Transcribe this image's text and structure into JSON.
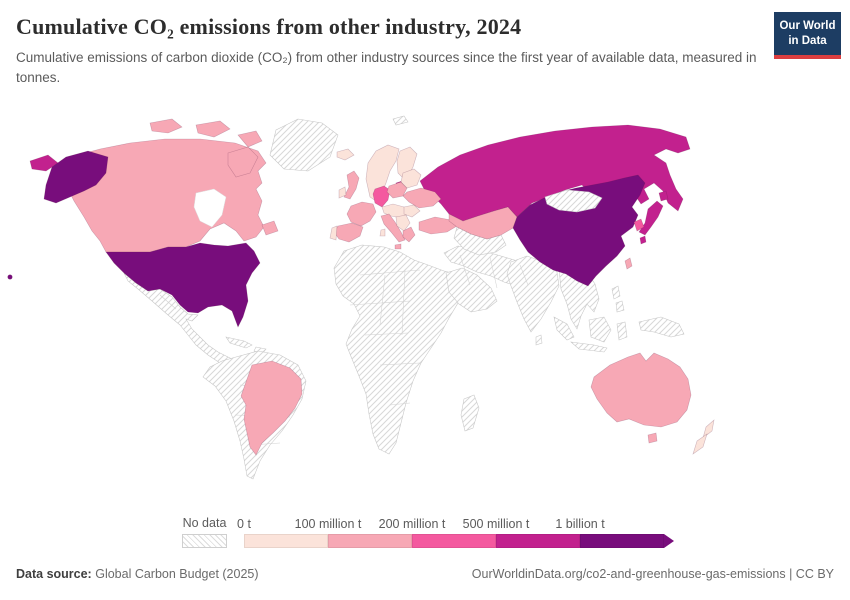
{
  "header": {
    "title": "Cumulative CO₂ emissions from other industry, 2024",
    "subtitle": "Cumulative emissions of carbon dioxide (CO₂) from other industry sources since the first year of available data, measured in tonnes.",
    "logo": {
      "line1": "Our World",
      "line2": "in Data",
      "bg_color": "#1d3d63",
      "accent_color": "#dc3e40"
    }
  },
  "chart_data": {
    "type": "heatmap",
    "subtype": "choropleth world map",
    "title": "Cumulative CO₂ emissions from other industry, 2024",
    "year": "2024",
    "unit": "tonnes",
    "no_data_label": "No data",
    "legend_position": "bottom",
    "bins": [
      {
        "id": "bin1",
        "threshold_label": "0 t",
        "range": "0 – 100 million t",
        "color": "#fbe3da"
      },
      {
        "id": "bin2",
        "threshold_label": "100 million t",
        "range": "100 – 200 million t",
        "color": "#f7a8b5"
      },
      {
        "id": "bin3",
        "threshold_label": "200 million t",
        "range": "200 – 500 million t",
        "color": "#f4599f"
      },
      {
        "id": "bin4",
        "threshold_label": "500 million t",
        "range": "500 million – 1 billion t",
        "color": "#c2218e"
      },
      {
        "id": "bin5",
        "threshold_label": "1 billion t",
        "range": "1 billion t and above",
        "color": "#780d7c"
      }
    ],
    "countries": {
      "United States": "bin5",
      "United States (Alaska)": "bin5",
      "United States (Hawaii)": "bin5",
      "China": "bin5",
      "Russia": "bin4",
      "Russia (Chukotka)": "bin4",
      "Russia (Kaliningrad)": "bin4",
      "Japan": "bin4",
      "Japan (Hokkaido)": "bin4",
      "Japan (Kyushu)": "bin4",
      "Germany": "bin3",
      "South Korea": "bin3",
      "Canada": "bin2",
      "Canada (Arctic islands A)": "bin2",
      "Canada (Arctic islands B)": "bin2",
      "Canada (Arctic islands C)": "bin2",
      "Canada (Baffin Island)": "bin2",
      "Canada (Newfoundland)": "bin2",
      "Brazil": "bin2",
      "Australia": "bin2",
      "Australia (Tasmania)": "bin2",
      "France": "bin2",
      "Spain": "bin2",
      "United Kingdom": "bin2",
      "Italy": "bin2",
      "Sicily": "bin2",
      "Poland": "bin2",
      "Ukraine": "bin2",
      "Turkey": "bin2",
      "Greece": "bin2",
      "Kazakhstan": "bin2",
      "Taiwan": "bin2",
      "Norway and Sweden": "bin1",
      "Finland": "bin1",
      "Denmark": "bin1",
      "Iceland": "bin1",
      "Ireland": "bin1",
      "Portugal": "bin1",
      "Central Europe": "bin1",
      "Romania and Hungary": "bin1",
      "Balkans": "bin1",
      "Baltics and Belarus": "bin1",
      "Sardinia": "bin1",
      "New Zealand": "bin1",
      "New Zealand (South Island)": "bin1",
      "Greenland": "no-data",
      "Svalbard": "no-data",
      "Mexico and Central America": "no-data",
      "Cuba": "no-data",
      "Hispaniola": "no-data",
      "South America (other)": "no-data",
      "Africa": "no-data",
      "Madagascar": "no-data",
      "Arabian Peninsula": "no-data",
      "Middle East and Central-South Asia": "no-data",
      "India": "no-data",
      "Sri Lanka": "no-data",
      "Southeast Asia": "no-data",
      "Sumatra": "no-data",
      "Java": "no-data",
      "Borneo": "no-data",
      "Sulawesi": "no-data",
      "New Guinea": "no-data",
      "Philippines (north)": "no-data",
      "Philippines (south)": "no-data",
      "Mongolia": "no-data",
      "Central Asia (other)": "no-data"
    }
  },
  "footer": {
    "source_label": "Data source:",
    "source_value": "Global Carbon Budget (2025)",
    "credit": "OurWorldinData.org/co2-and-greenhouse-gas-emissions | CC BY"
  }
}
